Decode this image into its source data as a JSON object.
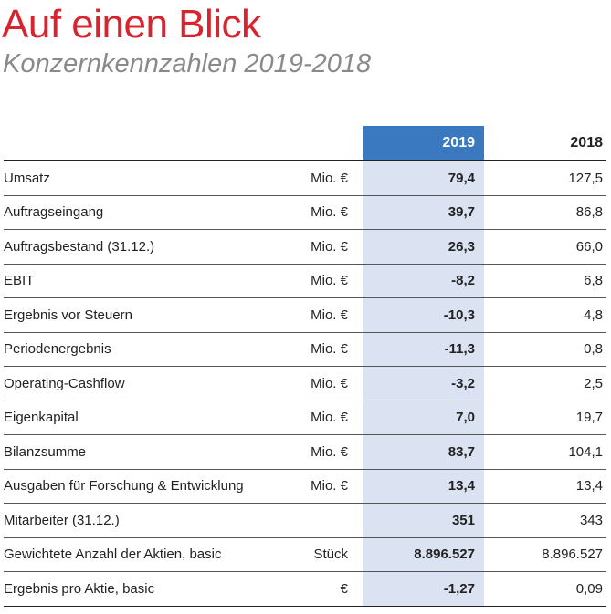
{
  "header": {
    "title": "Auf einen Blick",
    "subtitle": "Konzernkennzahlen 2019-2018"
  },
  "table": {
    "columns": {
      "current": "2019",
      "previous": "2018"
    },
    "rows": [
      {
        "label": "Umsatz",
        "unit": "Mio. €",
        "current": "79,4",
        "previous": "127,5"
      },
      {
        "label": "Auftragseingang",
        "unit": "Mio. €",
        "current": "39,7",
        "previous": "86,8"
      },
      {
        "label": "Auftragsbestand (31.12.)",
        "unit": "Mio. €",
        "current": "26,3",
        "previous": "66,0"
      },
      {
        "label": "EBIT",
        "unit": "Mio. €",
        "current": "-8,2",
        "previous": "6,8"
      },
      {
        "label": "Ergebnis vor Steuern",
        "unit": "Mio. €",
        "current": "-10,3",
        "previous": "4,8"
      },
      {
        "label": "Periodenergebnis",
        "unit": "Mio. €",
        "current": "-11,3",
        "previous": "0,8"
      },
      {
        "label": "Operating-Cashflow",
        "unit": "Mio. €",
        "current": "-3,2",
        "previous": "2,5"
      },
      {
        "label": "Eigenkapital",
        "unit": "Mio. €",
        "current": "7,0",
        "previous": "19,7"
      },
      {
        "label": "Bilanzsumme",
        "unit": "Mio. €",
        "current": "83,7",
        "previous": "104,1"
      },
      {
        "label": "Ausgaben für Forschung & Entwicklung",
        "unit": "Mio. €",
        "current": "13,4",
        "previous": "13,4"
      },
      {
        "label": "Mitarbeiter (31.12.)",
        "current": "351",
        "previous": "343"
      },
      {
        "label": "Gewichtete Anzahl der Aktien, basic",
        "unit": "Stück",
        "current": "8.896.527",
        "previous": "8.896.527"
      },
      {
        "label": "Ergebnis pro Aktie, basic",
        "unit": "€",
        "current": "-1,27",
        "previous": "0,09"
      }
    ]
  }
}
